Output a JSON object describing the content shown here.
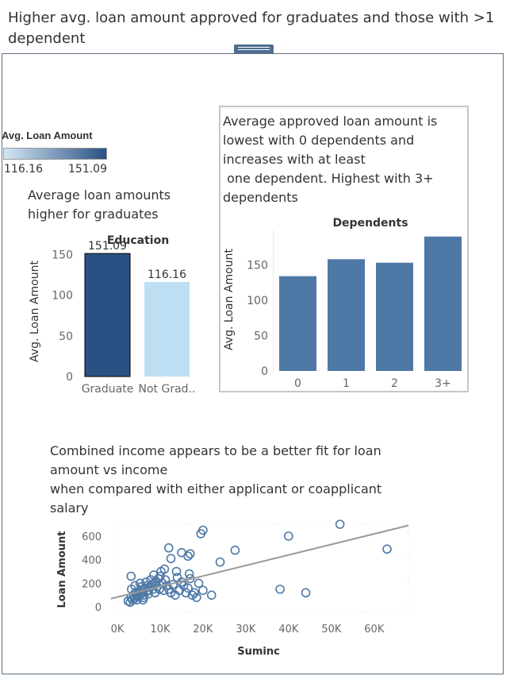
{
  "page": {
    "title": "Higher avg. loan amount approved for graduates and those with >1 dependent"
  },
  "legend": {
    "title": "Avg. Loan Amount",
    "min_label": "116.16",
    "max_label": "151.09",
    "color_low": "#d3e6f5",
    "color_high": "#2a5183"
  },
  "notes": {
    "education": "Average loan amounts\nhigher for graduates",
    "dependents": "Average approved loan amount is\nlowest with 0 dependents and\nincreases with at least\n one dependent. Highest with 3+\ndependents",
    "income": "Combined income appears to be a better fit for loan\namount vs income\nwhen compared with either applicant or coapplicant\nsalary"
  },
  "chart_data": [
    {
      "type": "bar",
      "title": "Education",
      "ylabel": "Avg. Loan Amount",
      "categories": [
        "Graduate",
        "Not Grad.."
      ],
      "values": [
        151.09,
        116.16
      ],
      "value_labels": [
        "151.09",
        "116.16"
      ],
      "bar_colors": [
        "#2a5183",
        "#bedff3"
      ],
      "ylim": [
        0,
        160
      ],
      "yticks": [
        0,
        50,
        100,
        150
      ]
    },
    {
      "type": "bar",
      "title": "Dependents",
      "ylabel": "Avg. Loan Amount",
      "categories": [
        "0",
        "1",
        "2",
        "3+"
      ],
      "values": [
        134,
        158,
        153,
        190
      ],
      "bar_color": "#4e79a7",
      "ylim": [
        0,
        192
      ],
      "yticks": [
        0,
        50,
        100,
        150
      ]
    },
    {
      "type": "scatter",
      "xlabel": "Suminc",
      "ylabel": "Loan Amount",
      "xlim": [
        0,
        68000
      ],
      "ylim": [
        -40,
        700
      ],
      "xticks": [
        0,
        10000,
        20000,
        30000,
        40000,
        50000,
        60000
      ],
      "xtick_labels": [
        "0K",
        "10K",
        "20K",
        "30K",
        "40K",
        "50K",
        "60K"
      ],
      "yticks": [
        0,
        200,
        400,
        600
      ],
      "marker_color": "#4e79a7",
      "trend_color": "#9a9a9a",
      "trend": [
        [
          -1500,
          70
        ],
        [
          68000,
          690
        ]
      ],
      "points": [
        [
          2500,
          50
        ],
        [
          3000,
          40
        ],
        [
          3200,
          80
        ],
        [
          3500,
          60
        ],
        [
          3800,
          100
        ],
        [
          4000,
          70
        ],
        [
          4200,
          120
        ],
        [
          4500,
          90
        ],
        [
          4800,
          110
        ],
        [
          5000,
          130
        ],
        [
          5200,
          95
        ],
        [
          5500,
          140
        ],
        [
          5800,
          120
        ],
        [
          6000,
          150
        ],
        [
          6200,
          100
        ],
        [
          6500,
          160
        ],
        [
          6800,
          130
        ],
        [
          7000,
          180
        ],
        [
          7300,
          140
        ],
        [
          7600,
          170
        ],
        [
          8000,
          190
        ],
        [
          8300,
          150
        ],
        [
          8600,
          200
        ],
        [
          9000,
          220
        ],
        [
          9300,
          170
        ],
        [
          9600,
          240
        ],
        [
          10000,
          260
        ],
        [
          10200,
          300
        ],
        [
          10500,
          200
        ],
        [
          11000,
          320
        ],
        [
          3300,
          150
        ],
        [
          4100,
          180
        ],
        [
          4600,
          60
        ],
        [
          5300,
          200
        ],
        [
          5600,
          170
        ],
        [
          6100,
          80
        ],
        [
          6700,
          210
        ],
        [
          7200,
          110
        ],
        [
          7800,
          230
        ],
        [
          8800,
          120
        ],
        [
          9800,
          150
        ],
        [
          10800,
          140
        ],
        [
          11500,
          180
        ],
        [
          12000,
          150
        ],
        [
          12500,
          120
        ],
        [
          13000,
          190
        ],
        [
          13500,
          100
        ],
        [
          14000,
          250
        ],
        [
          14500,
          140
        ],
        [
          15000,
          210
        ],
        [
          15500,
          180
        ],
        [
          16000,
          120
        ],
        [
          16500,
          160
        ],
        [
          17000,
          240
        ],
        [
          17500,
          100
        ],
        [
          18000,
          120
        ],
        [
          18500,
          80
        ],
        [
          19000,
          200
        ],
        [
          20000,
          140
        ],
        [
          16800,
          280
        ],
        [
          12000,
          500
        ],
        [
          12500,
          410
        ],
        [
          15000,
          460
        ],
        [
          16500,
          430
        ],
        [
          17000,
          450
        ],
        [
          19500,
          620
        ],
        [
          20000,
          650
        ],
        [
          22000,
          100
        ],
        [
          24000,
          380
        ],
        [
          27500,
          480
        ],
        [
          38000,
          150
        ],
        [
          40000,
          600
        ],
        [
          44000,
          120
        ],
        [
          52000,
          700
        ],
        [
          63000,
          490
        ],
        [
          3200,
          260
        ],
        [
          6000,
          60
        ],
        [
          8500,
          270
        ],
        [
          11200,
          230
        ],
        [
          13800,
          300
        ]
      ]
    }
  ]
}
